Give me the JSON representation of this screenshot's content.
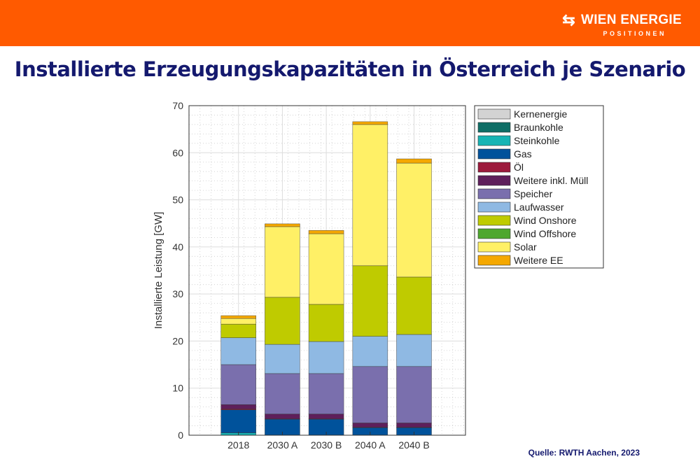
{
  "header": {
    "brand": "WIEN ENERGIE",
    "brand_sub": "POSITIONEN"
  },
  "title": "Installierte Erzeugungskapazitäten in Österreich je Szenario",
  "source": "Quelle: RWTH Aachen, 2023",
  "chart_data": {
    "type": "bar",
    "stacked": true,
    "title": "Installierte Erzeugungskapazitäten in Österreich je Szenario",
    "xlabel": "",
    "ylabel": "Installierte Leistung [GW]",
    "ylim": [
      0,
      70
    ],
    "yticks": [
      0,
      10,
      20,
      30,
      40,
      50,
      60,
      70
    ],
    "grid": true,
    "legend_position": "right",
    "categories": [
      "2018",
      "2030 A",
      "2030 B",
      "2040 A",
      "2040 B"
    ],
    "series": [
      {
        "name": "Kernenergie",
        "color": "#d3d3d3",
        "values": [
          0,
          0,
          0,
          0,
          0
        ]
      },
      {
        "name": "Braunkohle",
        "color": "#0f6e66",
        "values": [
          0,
          0,
          0,
          0,
          0
        ]
      },
      {
        "name": "Steinkohle",
        "color": "#17b4b4",
        "values": [
          0.5,
          0,
          0,
          0,
          0
        ]
      },
      {
        "name": "Gas",
        "color": "#00529b",
        "values": [
          4.9,
          3.4,
          3.4,
          1.6,
          1.6
        ]
      },
      {
        "name": "Öl",
        "color": "#9c1a3c",
        "values": [
          0.2,
          0.1,
          0.1,
          0.1,
          0.1
        ]
      },
      {
        "name": "Weitere inkl. Müll",
        "color": "#5e1f5b",
        "values": [
          0.9,
          1.0,
          1.0,
          0.9,
          0.9
        ]
      },
      {
        "name": "Speicher",
        "color": "#7a6fad",
        "values": [
          8.5,
          8.6,
          8.6,
          12.0,
          12.0
        ]
      },
      {
        "name": "Laufwasser",
        "color": "#8fb9e3",
        "values": [
          5.7,
          6.2,
          6.8,
          6.4,
          6.8
        ]
      },
      {
        "name": "Wind Onshore",
        "color": "#bfcb00",
        "values": [
          2.9,
          10.0,
          7.9,
          15.0,
          12.2
        ]
      },
      {
        "name": "Wind Offshore",
        "color": "#4ea72e",
        "values": [
          0,
          0,
          0,
          0,
          0
        ]
      },
      {
        "name": "Solar",
        "color": "#fff066",
        "values": [
          1.2,
          15.0,
          15.0,
          30.0,
          24.2
        ]
      },
      {
        "name": "Weitere EE",
        "color": "#f5a800",
        "values": [
          0.6,
          0.6,
          0.7,
          0.6,
          0.9
        ]
      }
    ]
  }
}
